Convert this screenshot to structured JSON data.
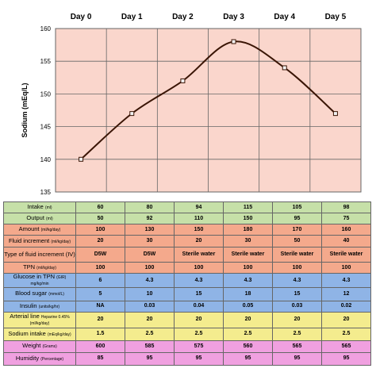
{
  "chart_data": {
    "type": "line",
    "categories": [
      "Day 0",
      "Day 1",
      "Day 2",
      "Day 3",
      "Day 4",
      "Day 5"
    ],
    "series": [
      {
        "values": [
          140,
          147,
          152,
          158,
          154,
          147
        ]
      }
    ],
    "ylabel": "Sodium (mEq/L)",
    "ylim": [
      135,
      160
    ],
    "yticks": [
      135,
      140,
      145,
      150,
      155,
      160
    ],
    "grid": true,
    "colors": {
      "plot_bg": "#fad6cc",
      "line": "#3a1505",
      "marker_fill": "#f2f2f2",
      "grid": "#666666"
    }
  },
  "table": {
    "rows": [
      {
        "label": "Intake",
        "unit": "(ml)",
        "color": "#c6e0a8",
        "values": [
          "60",
          "80",
          "94",
          "115",
          "105",
          "98"
        ]
      },
      {
        "label": "Output",
        "unit": "(ml)",
        "color": "#c6e0a8",
        "values": [
          "50",
          "92",
          "110",
          "150",
          "95",
          "75"
        ]
      },
      {
        "label": "Amount",
        "unit": "(ml/kg/day)",
        "color": "#f4a98c",
        "values": [
          "100",
          "130",
          "150",
          "180",
          "170",
          "160"
        ]
      },
      {
        "label": "Fluid increment",
        "unit": "(ml/kg/day)",
        "color": "#f4a98c",
        "values": [
          "20",
          "30",
          "20",
          "30",
          "50",
          "40"
        ]
      },
      {
        "label": "Type of fluid increment (IV)",
        "unit": "",
        "color": "#f4a98c",
        "values": [
          "D5W",
          "D5W",
          "Sterile water",
          "Sterile water",
          "Sterile water",
          "Sterile water"
        ]
      },
      {
        "label": "TPN",
        "unit": "(ml/kg/day)",
        "color": "#f4a98c",
        "values": [
          "100",
          "100",
          "100",
          "100",
          "100",
          "100"
        ]
      },
      {
        "label": "Glucose in TPN",
        "unit": "(GIR) mg/kg/min",
        "color": "#8fb4e6",
        "values": [
          "6",
          "4.3",
          "4.3",
          "4.3",
          "4.3",
          "4.3"
        ]
      },
      {
        "label": "Blood sugar",
        "unit": "(mmol/L)",
        "color": "#8fb4e6",
        "values": [
          "5",
          "10",
          "15",
          "18",
          "15",
          "12"
        ]
      },
      {
        "label": "Insulin",
        "unit": "(units/kg/hr)",
        "color": "#8fb4e6",
        "values": [
          "NA",
          "0.03",
          "0.04",
          "0.05",
          "0.03",
          "0.02"
        ]
      },
      {
        "label": "Arterial line",
        "unit": "Heparine 0.45% (ml/kg/day)",
        "color": "#f4ec8e",
        "values": [
          "20",
          "20",
          "20",
          "20",
          "20",
          "20"
        ]
      },
      {
        "label": "Sodium intake",
        "unit": "(mEq/kg/day)",
        "color": "#f4ec8e",
        "values": [
          "1.5",
          "2.5",
          "2.5",
          "2.5",
          "2.5",
          "2.5"
        ]
      },
      {
        "label": "Weight",
        "unit": "(Grams)",
        "color": "#f0a0e0",
        "values": [
          "600",
          "585",
          "575",
          "560",
          "565",
          "565"
        ]
      },
      {
        "label": "Humidity",
        "unit": "(Percentage)",
        "color": "#f0a0e0",
        "values": [
          "85",
          "95",
          "95",
          "95",
          "95",
          "95"
        ]
      }
    ]
  }
}
